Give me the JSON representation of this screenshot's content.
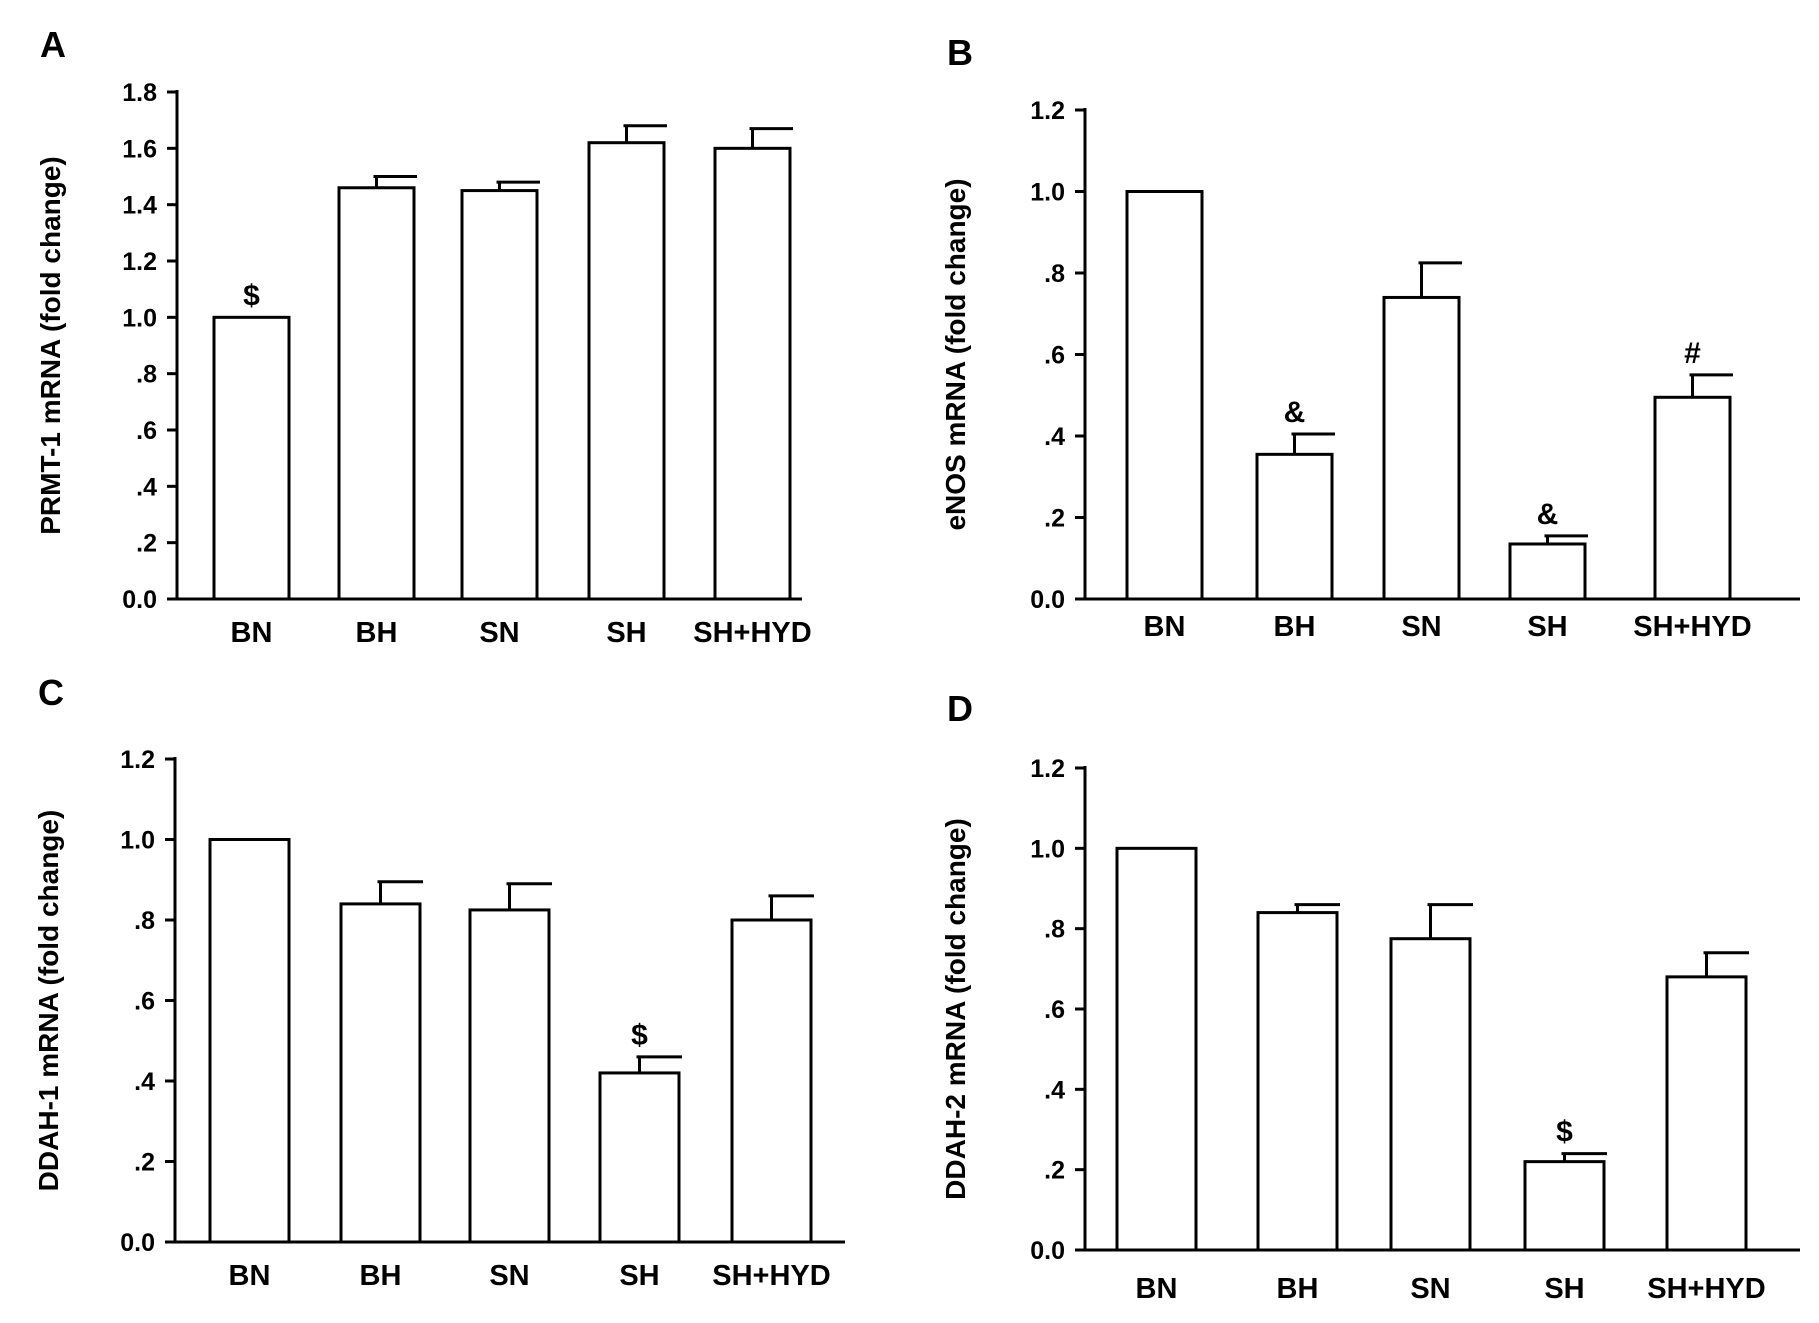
{
  "chart_data": [
    {
      "panel": "A",
      "type": "bar",
      "ylabel": "PRMT-1 mRNA  (fold change)",
      "ylim": [
        0,
        1.8
      ],
      "yticks": [
        "0.0",
        ".2",
        ".4",
        ".6",
        ".8",
        "1.0",
        "1.2",
        "1.4",
        "1.6",
        "1.8"
      ],
      "categories": [
        "BN",
        "BH",
        "SN",
        "SH",
        "SH+HYD"
      ],
      "values": [
        1.0,
        1.46,
        1.45,
        1.62,
        1.6
      ],
      "errors": [
        0,
        0.04,
        0.03,
        0.06,
        0.07
      ],
      "annotations": [
        "$",
        "",
        "",
        "",
        ""
      ]
    },
    {
      "panel": "B",
      "type": "bar",
      "ylabel": "eNOS mRNA  (fold change)",
      "ylim": [
        0,
        1.2
      ],
      "yticks": [
        "0.0",
        ".2",
        ".4",
        ".6",
        ".8",
        "1.0",
        "1.2"
      ],
      "categories": [
        "BN",
        "BH",
        "SN",
        "SH",
        "SH+HYD"
      ],
      "values": [
        1.0,
        0.355,
        0.74,
        0.135,
        0.495
      ],
      "errors": [
        0,
        0.05,
        0.085,
        0.02,
        0.055
      ],
      "annotations": [
        "",
        "&",
        "",
        "&",
        "#"
      ]
    },
    {
      "panel": "C",
      "type": "bar",
      "ylabel": "DDAH-1 mRNA  (fold change)",
      "ylim": [
        0,
        1.2
      ],
      "yticks": [
        "0.0",
        ".2",
        ".4",
        ".6",
        ".8",
        "1.0",
        "1.2"
      ],
      "categories": [
        "BN",
        "BH",
        "SN",
        "SH",
        "SH+HYD"
      ],
      "values": [
        1.0,
        0.84,
        0.825,
        0.42,
        0.8
      ],
      "errors": [
        0,
        0.055,
        0.065,
        0.04,
        0.06
      ],
      "annotations": [
        "",
        "",
        "",
        "$",
        ""
      ]
    },
    {
      "panel": "D",
      "type": "bar",
      "ylabel": "DDAH-2 mRNA  (fold change)",
      "ylim": [
        0,
        1.2
      ],
      "yticks": [
        "0.0",
        ".2",
        ".4",
        ".6",
        ".8",
        "1.0",
        "1.2"
      ],
      "categories": [
        "BN",
        "BH",
        "SN",
        "SH",
        "SH+HYD"
      ],
      "values": [
        1.0,
        0.84,
        0.775,
        0.22,
        0.68
      ],
      "errors": [
        0,
        0.02,
        0.085,
        0.02,
        0.06
      ],
      "annotations": [
        "",
        "",
        "",
        "$",
        ""
      ]
    }
  ]
}
